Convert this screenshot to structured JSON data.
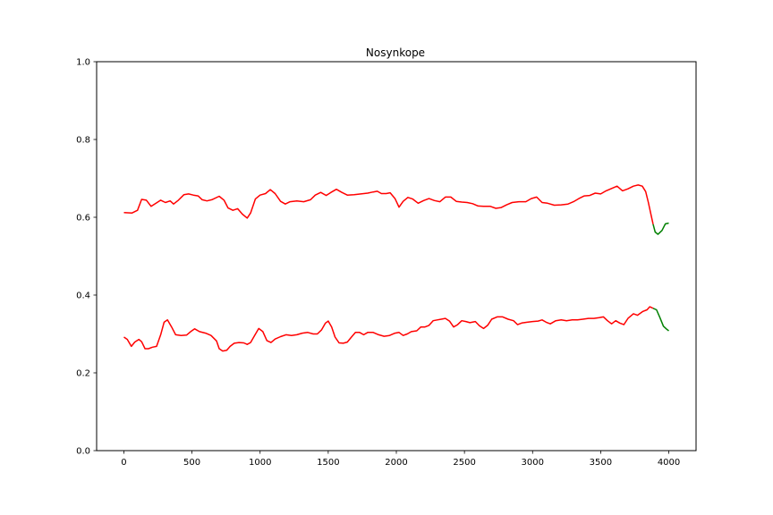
{
  "chart_data": {
    "type": "line",
    "title": "Nosynkope",
    "xlabel": "",
    "ylabel": "",
    "xlim": [
      -200,
      4200
    ],
    "ylim": [
      0,
      1
    ],
    "x_ticks": [
      0,
      500,
      1000,
      1500,
      2000,
      2500,
      3000,
      3500,
      4000
    ],
    "y_ticks": [
      0.0,
      0.2,
      0.4,
      0.6,
      0.8,
      1.0
    ],
    "x_tick_labels": [
      "0",
      "500",
      "1000",
      "1500",
      "2000",
      "2500",
      "3000",
      "3500",
      "4000"
    ],
    "y_tick_labels": [
      "0.0",
      "0.2",
      "0.4",
      "0.6",
      "0.8",
      "1.0"
    ],
    "grid": false,
    "legend": "none",
    "colors": {
      "main": "#ff0000",
      "tail": "#008000"
    },
    "series": [
      {
        "color": "#ff0000",
        "points": [
          [
            0,
            0.612
          ],
          [
            60,
            0.611
          ],
          [
            100,
            0.618
          ],
          [
            130,
            0.646
          ],
          [
            165,
            0.644
          ],
          [
            200,
            0.628
          ],
          [
            240,
            0.637
          ],
          [
            270,
            0.644
          ],
          [
            305,
            0.638
          ],
          [
            340,
            0.642
          ],
          [
            365,
            0.634
          ],
          [
            400,
            0.644
          ],
          [
            440,
            0.658
          ],
          [
            475,
            0.66
          ],
          [
            510,
            0.657
          ],
          [
            545,
            0.655
          ],
          [
            575,
            0.645
          ],
          [
            610,
            0.642
          ],
          [
            645,
            0.645
          ],
          [
            700,
            0.654
          ],
          [
            735,
            0.644
          ],
          [
            765,
            0.624
          ],
          [
            800,
            0.618
          ],
          [
            835,
            0.622
          ],
          [
            870,
            0.608
          ],
          [
            905,
            0.598
          ],
          [
            930,
            0.611
          ],
          [
            965,
            0.647
          ],
          [
            1000,
            0.657
          ],
          [
            1040,
            0.661
          ],
          [
            1075,
            0.671
          ],
          [
            1110,
            0.661
          ],
          [
            1150,
            0.641
          ],
          [
            1185,
            0.634
          ],
          [
            1220,
            0.64
          ],
          [
            1270,
            0.642
          ],
          [
            1320,
            0.64
          ],
          [
            1370,
            0.645
          ],
          [
            1405,
            0.657
          ],
          [
            1445,
            0.664
          ],
          [
            1485,
            0.656
          ],
          [
            1520,
            0.664
          ],
          [
            1560,
            0.672
          ],
          [
            1600,
            0.664
          ],
          [
            1640,
            0.657
          ],
          [
            1690,
            0.658
          ],
          [
            1740,
            0.66
          ],
          [
            1790,
            0.662
          ],
          [
            1830,
            0.665
          ],
          [
            1860,
            0.667
          ],
          [
            1890,
            0.661
          ],
          [
            1925,
            0.661
          ],
          [
            1955,
            0.663
          ],
          [
            1990,
            0.648
          ],
          [
            2020,
            0.626
          ],
          [
            2050,
            0.641
          ],
          [
            2085,
            0.651
          ],
          [
            2120,
            0.647
          ],
          [
            2160,
            0.636
          ],
          [
            2200,
            0.643
          ],
          [
            2240,
            0.648
          ],
          [
            2280,
            0.643
          ],
          [
            2320,
            0.64
          ],
          [
            2360,
            0.652
          ],
          [
            2400,
            0.652
          ],
          [
            2440,
            0.641
          ],
          [
            2480,
            0.639
          ],
          [
            2520,
            0.638
          ],
          [
            2560,
            0.635
          ],
          [
            2600,
            0.629
          ],
          [
            2640,
            0.628
          ],
          [
            2690,
            0.628
          ],
          [
            2730,
            0.623
          ],
          [
            2770,
            0.625
          ],
          [
            2810,
            0.632
          ],
          [
            2850,
            0.638
          ],
          [
            2900,
            0.64
          ],
          [
            2950,
            0.64
          ],
          [
            2990,
            0.648
          ],
          [
            3030,
            0.652
          ],
          [
            3070,
            0.638
          ],
          [
            3110,
            0.636
          ],
          [
            3160,
            0.631
          ],
          [
            3210,
            0.632
          ],
          [
            3260,
            0.634
          ],
          [
            3300,
            0.64
          ],
          [
            3340,
            0.648
          ],
          [
            3380,
            0.655
          ],
          [
            3420,
            0.656
          ],
          [
            3460,
            0.662
          ],
          [
            3500,
            0.66
          ],
          [
            3540,
            0.668
          ],
          [
            3580,
            0.674
          ],
          [
            3620,
            0.68
          ],
          [
            3660,
            0.668
          ],
          [
            3700,
            0.673
          ],
          [
            3740,
            0.68
          ],
          [
            3775,
            0.683
          ],
          [
            3805,
            0.68
          ],
          [
            3830,
            0.666
          ],
          [
            3850,
            0.638
          ],
          [
            3870,
            0.605
          ],
          [
            3885,
            0.582
          ]
        ]
      },
      {
        "color": "#008000",
        "points": [
          [
            3885,
            0.582
          ],
          [
            3900,
            0.562
          ],
          [
            3920,
            0.556
          ],
          [
            3950,
            0.566
          ],
          [
            3975,
            0.583
          ],
          [
            4000,
            0.585
          ]
        ]
      },
      {
        "color": "#ff0000",
        "points": [
          [
            0,
            0.292
          ],
          [
            25,
            0.286
          ],
          [
            55,
            0.268
          ],
          [
            80,
            0.279
          ],
          [
            110,
            0.286
          ],
          [
            130,
            0.28
          ],
          [
            155,
            0.262
          ],
          [
            180,
            0.262
          ],
          [
            210,
            0.266
          ],
          [
            240,
            0.268
          ],
          [
            270,
            0.298
          ],
          [
            295,
            0.33
          ],
          [
            320,
            0.336
          ],
          [
            350,
            0.318
          ],
          [
            380,
            0.298
          ],
          [
            420,
            0.296
          ],
          [
            460,
            0.297
          ],
          [
            490,
            0.306
          ],
          [
            520,
            0.313
          ],
          [
            555,
            0.306
          ],
          [
            600,
            0.302
          ],
          [
            640,
            0.296
          ],
          [
            680,
            0.282
          ],
          [
            700,
            0.262
          ],
          [
            725,
            0.256
          ],
          [
            755,
            0.258
          ],
          [
            780,
            0.268
          ],
          [
            810,
            0.276
          ],
          [
            845,
            0.278
          ],
          [
            880,
            0.277
          ],
          [
            905,
            0.273
          ],
          [
            930,
            0.278
          ],
          [
            960,
            0.296
          ],
          [
            990,
            0.314
          ],
          [
            1020,
            0.306
          ],
          [
            1050,
            0.283
          ],
          [
            1080,
            0.278
          ],
          [
            1110,
            0.287
          ],
          [
            1150,
            0.293
          ],
          [
            1190,
            0.298
          ],
          [
            1230,
            0.296
          ],
          [
            1270,
            0.298
          ],
          [
            1310,
            0.302
          ],
          [
            1350,
            0.304
          ],
          [
            1390,
            0.3
          ],
          [
            1420,
            0.3
          ],
          [
            1450,
            0.31
          ],
          [
            1480,
            0.328
          ],
          [
            1500,
            0.333
          ],
          [
            1525,
            0.318
          ],
          [
            1550,
            0.292
          ],
          [
            1580,
            0.277
          ],
          [
            1610,
            0.276
          ],
          [
            1640,
            0.279
          ],
          [
            1670,
            0.292
          ],
          [
            1700,
            0.304
          ],
          [
            1730,
            0.304
          ],
          [
            1760,
            0.298
          ],
          [
            1790,
            0.304
          ],
          [
            1830,
            0.304
          ],
          [
            1870,
            0.298
          ],
          [
            1910,
            0.294
          ],
          [
            1950,
            0.296
          ],
          [
            1990,
            0.302
          ],
          [
            2020,
            0.304
          ],
          [
            2050,
            0.296
          ],
          [
            2080,
            0.3
          ],
          [
            2110,
            0.306
          ],
          [
            2150,
            0.308
          ],
          [
            2180,
            0.318
          ],
          [
            2210,
            0.318
          ],
          [
            2240,
            0.322
          ],
          [
            2270,
            0.334
          ],
          [
            2300,
            0.336
          ],
          [
            2330,
            0.338
          ],
          [
            2360,
            0.34
          ],
          [
            2390,
            0.333
          ],
          [
            2420,
            0.318
          ],
          [
            2450,
            0.324
          ],
          [
            2480,
            0.334
          ],
          [
            2510,
            0.332
          ],
          [
            2540,
            0.329
          ],
          [
            2580,
            0.332
          ],
          [
            2610,
            0.321
          ],
          [
            2640,
            0.314
          ],
          [
            2670,
            0.322
          ],
          [
            2700,
            0.338
          ],
          [
            2740,
            0.344
          ],
          [
            2780,
            0.344
          ],
          [
            2820,
            0.338
          ],
          [
            2860,
            0.334
          ],
          [
            2890,
            0.324
          ],
          [
            2920,
            0.328
          ],
          [
            2960,
            0.33
          ],
          [
            3000,
            0.332
          ],
          [
            3040,
            0.333
          ],
          [
            3070,
            0.336
          ],
          [
            3100,
            0.33
          ],
          [
            3130,
            0.326
          ],
          [
            3170,
            0.334
          ],
          [
            3210,
            0.336
          ],
          [
            3250,
            0.334
          ],
          [
            3290,
            0.336
          ],
          [
            3330,
            0.336
          ],
          [
            3370,
            0.338
          ],
          [
            3410,
            0.34
          ],
          [
            3450,
            0.34
          ],
          [
            3490,
            0.342
          ],
          [
            3520,
            0.344
          ],
          [
            3550,
            0.334
          ],
          [
            3580,
            0.326
          ],
          [
            3610,
            0.334
          ],
          [
            3640,
            0.328
          ],
          [
            3670,
            0.324
          ],
          [
            3700,
            0.34
          ],
          [
            3740,
            0.352
          ],
          [
            3770,
            0.348
          ],
          [
            3810,
            0.358
          ],
          [
            3840,
            0.362
          ],
          [
            3860,
            0.37
          ],
          [
            3885,
            0.366
          ]
        ]
      },
      {
        "color": "#008000",
        "points": [
          [
            3885,
            0.366
          ],
          [
            3910,
            0.362
          ],
          [
            3935,
            0.342
          ],
          [
            3960,
            0.32
          ],
          [
            3985,
            0.312
          ],
          [
            4000,
            0.308
          ]
        ]
      }
    ]
  }
}
